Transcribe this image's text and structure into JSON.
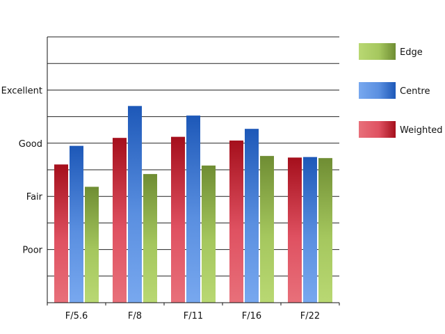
{
  "chart_data": {
    "type": "bar",
    "categories": [
      "F/5.6",
      "F/8",
      "F/11",
      "F/16",
      "F/22"
    ],
    "series": [
      {
        "name": "Weighted",
        "values": [
          2.6,
          3.1,
          3.12,
          3.05,
          2.73
        ],
        "colors": {
          "light": "#e8707a",
          "mid": "#df5161",
          "dark": "#a50f1c"
        }
      },
      {
        "name": "Centre",
        "values": [
          2.95,
          3.7,
          3.52,
          3.27,
          2.74
        ],
        "colors": {
          "light": "#78a8ef",
          "mid": "#5a8fe0",
          "dark": "#1d58b8"
        }
      },
      {
        "name": "Edge",
        "values": [
          2.18,
          2.42,
          2.58,
          2.76,
          2.72
        ],
        "colors": {
          "light": "#b9d873",
          "mid": "#a5c75e",
          "dark": "#6f8d33"
        }
      }
    ],
    "y_ticks": [
      {
        "value": 1,
        "label": "Poor"
      },
      {
        "value": 2,
        "label": "Fair"
      },
      {
        "value": 3,
        "label": "Good"
      },
      {
        "value": 4,
        "label": "Excellent"
      }
    ],
    "ylim": [
      0,
      5
    ],
    "grid": true,
    "legend": {
      "placement": "right",
      "order": [
        "Edge",
        "Centre",
        "Weighted"
      ]
    },
    "title": "",
    "xlabel": "",
    "ylabel": ""
  }
}
